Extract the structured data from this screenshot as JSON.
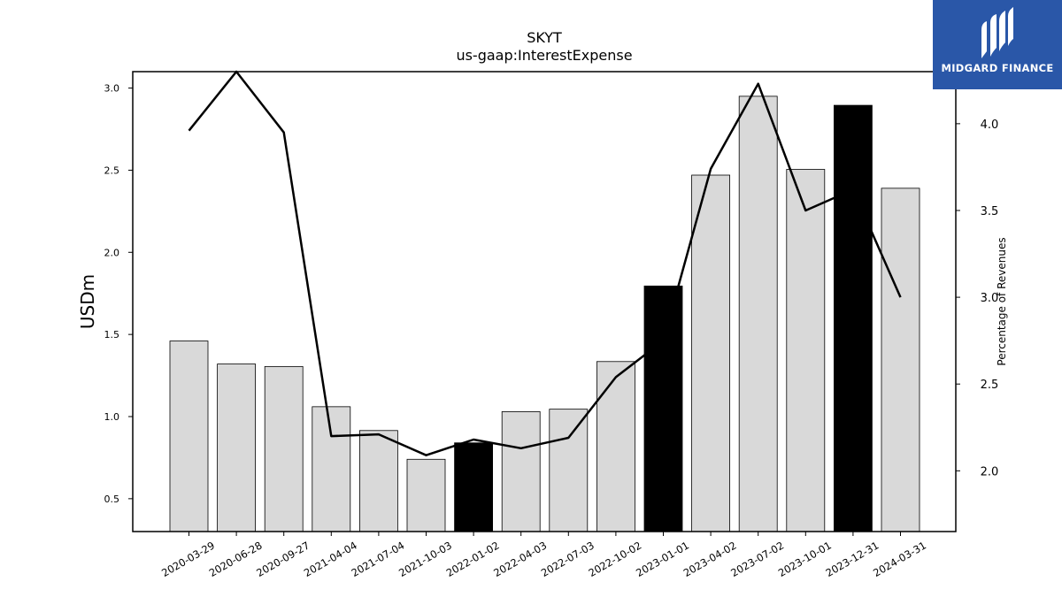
{
  "chart_data": {
    "type": "bar",
    "title": "SKYT",
    "subtitle": "us-gaap:InterestExpense",
    "ylabel": "USDm",
    "y2label": "Percentage of Revenues",
    "categories": [
      "2020-03-29",
      "2020-06-28",
      "2020-09-27",
      "2021-04-04",
      "2021-07-04",
      "2021-10-03",
      "2022-01-02",
      "2022-04-03",
      "2022-07-03",
      "2022-10-02",
      "2023-01-01",
      "2023-04-02",
      "2023-07-02",
      "2023-10-01",
      "2023-12-31",
      "2024-03-31"
    ],
    "series": [
      {
        "type": "bar",
        "axis": "left",
        "values": [
          1.46,
          1.32,
          1.305,
          1.06,
          0.915,
          0.74,
          0.84,
          1.03,
          1.045,
          1.335,
          1.795,
          2.47,
          2.95,
          2.505,
          2.895,
          2.39
        ],
        "highlight": [
          false,
          false,
          false,
          false,
          false,
          false,
          true,
          false,
          false,
          false,
          true,
          false,
          false,
          false,
          true,
          false
        ]
      },
      {
        "type": "line",
        "axis": "right",
        "values": [
          3.96,
          4.3,
          3.95,
          2.2,
          2.21,
          2.09,
          2.18,
          2.13,
          2.19,
          2.54,
          2.75,
          3.74,
          4.23,
          3.5,
          3.62,
          3.0
        ]
      }
    ],
    "ylim": [
      0.3,
      3.1
    ],
    "y2lim": [
      1.65,
      4.3
    ],
    "yticks": [
      "0.5",
      "1.0",
      "1.5",
      "2.0",
      "2.5",
      "3.0"
    ],
    "y2ticks": [
      "2.0",
      "2.5",
      "3.0",
      "3.5",
      "4.0"
    ],
    "colors": {
      "bar": "#d9d9d9",
      "bar_highlight": "#000000",
      "line": "#000000"
    }
  },
  "logo": {
    "brand": "MIDGARD FINANCE",
    "background": "#2a57a8"
  }
}
